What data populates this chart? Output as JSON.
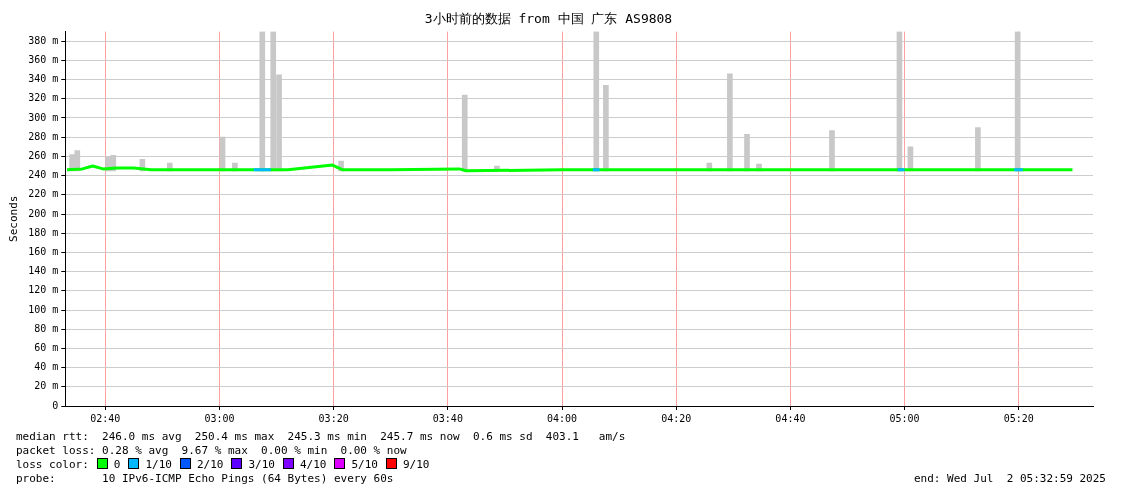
{
  "chart_data": {
    "type": "bar",
    "title": "3小时前的数据 from 中国 广东 AS9808",
    "ylabel": "Seconds",
    "legend_title": "loss color:",
    "legend": "bottom",
    "grid": true,
    "xlim": [
      2.55,
      5.55
    ],
    "xticks": [
      {
        "value": 2.6667,
        "label": "02:40"
      },
      {
        "value": 3,
        "label": "03:00"
      },
      {
        "value": 3.3333,
        "label": "03:20"
      },
      {
        "value": 3.6667,
        "label": "03:40"
      },
      {
        "value": 4,
        "label": "04:00"
      },
      {
        "value": 4.3333,
        "label": "04:20"
      },
      {
        "value": 4.6667,
        "label": "04:40"
      },
      {
        "value": 5,
        "label": "05:00"
      },
      {
        "value": 5.3333,
        "label": "05:20"
      }
    ],
    "ylim": [
      0,
      390
    ],
    "yticks": [
      0,
      {
        "value": 20,
        "label": "20 m"
      },
      {
        "value": 40,
        "label": "40 m"
      },
      {
        "value": 60,
        "label": "60 m"
      },
      {
        "value": 80,
        "label": "80 m"
      },
      {
        "value": 100,
        "label": "100 m"
      },
      {
        "value": 120,
        "label": "120 m"
      },
      {
        "value": 140,
        "label": "140 m"
      },
      {
        "value": 160,
        "label": "160 m"
      },
      {
        "value": 180,
        "label": "180 m"
      },
      {
        "value": 200,
        "label": "200 m"
      },
      {
        "value": 220,
        "label": "220 m"
      },
      {
        "value": 240,
        "label": "240 m"
      },
      {
        "value": 260,
        "label": "260 m"
      },
      {
        "value": 280,
        "label": "280 m"
      },
      {
        "value": 300,
        "label": "300 m"
      },
      {
        "value": 320,
        "label": "320 m"
      },
      {
        "value": 340,
        "label": "340 m"
      },
      {
        "value": 360,
        "label": "360 m"
      },
      {
        "value": 380,
        "label": "380 m"
      }
    ],
    "series": [
      {
        "color": "#c8c8c8",
        "x": [
          2.57,
          2.585,
          2.675,
          2.69,
          2.775,
          2.855,
          3.009,
          3.045,
          3.125,
          3.157,
          3.174,
          3.355,
          3.716,
          3.81,
          4.1,
          4.128,
          4.43,
          4.49,
          4.54,
          4.575,
          4.788,
          4.985,
          5.017,
          5.214,
          5.33
        ],
        "base": [
          245,
          245,
          245,
          245,
          245,
          245,
          245,
          245,
          245,
          245,
          245,
          245,
          245,
          245,
          245,
          245,
          245,
          245,
          245,
          245,
          245,
          245,
          245,
          245,
          245
        ],
        "values": [
          17,
          21,
          15,
          16,
          12,
          8,
          35,
          8,
          145,
          145,
          100,
          10,
          79,
          5,
          145,
          89,
          8,
          101,
          38,
          7,
          42,
          145,
          25,
          45,
          145
        ]
      },
      {
        "type": "line",
        "name": "0",
        "color": "#00ff00",
        "x": [
          2.555,
          2.6,
          2.63,
          2.66,
          2.7,
          2.75,
          2.8,
          3.0,
          3.2,
          3.33,
          3.36,
          3.5,
          3.7,
          3.72,
          4.0,
          4.5,
          5.0,
          5.49
        ],
        "values": [
          246,
          247,
          250,
          247,
          248,
          248,
          246,
          246,
          246,
          251,
          246,
          246,
          247,
          245,
          246,
          246,
          246,
          246
        ]
      },
      {
        "type": "line",
        "name": "1/10",
        "color": "#00b8ff",
        "x": [
          3.1,
          3.15,
          3.151,
          4.09,
          4.11,
          4.111,
          4.98,
          5.0,
          5.001,
          5.32,
          5.345
        ],
        "values": [
          246,
          246,
          null,
          246,
          246,
          null,
          246,
          246,
          null,
          246,
          246
        ]
      },
      {
        "type": "line",
        "name": "2/10",
        "color": "#0059ff"
      },
      {
        "type": "line",
        "name": "3/10",
        "color": "#5e00ff"
      },
      {
        "type": "line",
        "name": "4/10",
        "color": "#7e00ff"
      },
      {
        "type": "line",
        "name": "5/10",
        "color": "#dd00ff"
      },
      {
        "type": "line",
        "name": "9/10",
        "color": "#ff0000"
      }
    ],
    "annotations": [
      "median rtt:  246.0 ms avg  250.4 ms max  245.3 ms min  245.7 ms now  0.6 ms sd  403.1   am/s",
      "packet loss: 0.28 % avg  9.67 % max  0.00 % min  0.00 % now",
      "probe:       10 IPv6-ICMP Echo Pings (64 Bytes) every 60s",
      "end: Wed Jul  2 05:32:59 2025"
    ]
  }
}
